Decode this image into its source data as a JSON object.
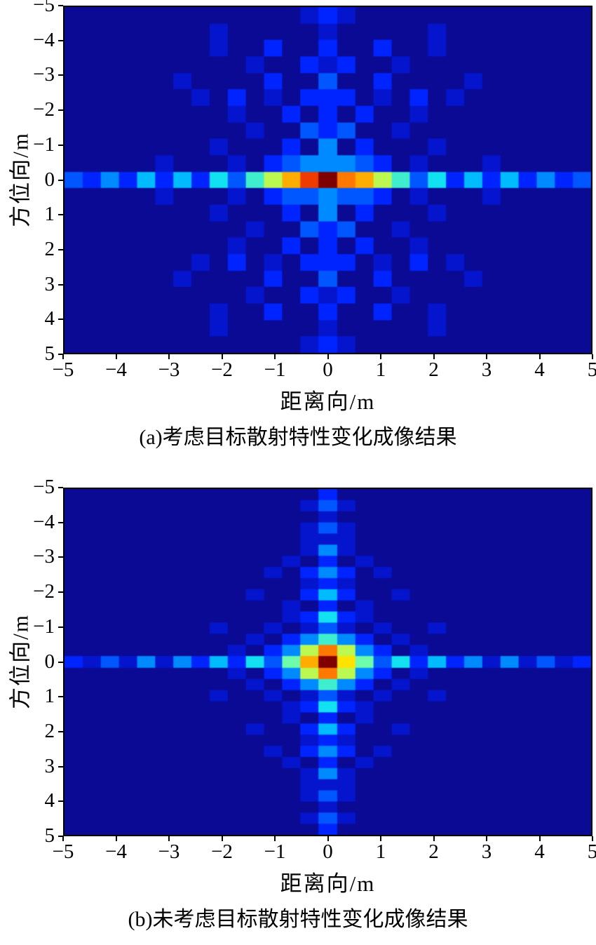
{
  "page": {
    "background": "#ffffff"
  },
  "chart_data": [
    {
      "type": "heatmap",
      "panel": "a",
      "caption": "(a)考虑目标散射特性变化成像结果",
      "xlabel": "距离向/m",
      "ylabel": "方位向/m",
      "xlim": [
        -5,
        5
      ],
      "ylim": [
        -5,
        5
      ],
      "xticks": [
        -5,
        -4,
        -3,
        -2,
        -1,
        0,
        1,
        2,
        3,
        4,
        5
      ],
      "yticks": [
        -5,
        -4,
        -3,
        -2,
        -1,
        0,
        1,
        2,
        3,
        4,
        5
      ],
      "xtick_labels": [
        "−5",
        "−4",
        "−3",
        "−2",
        "−1",
        "0",
        "1",
        "2",
        "3",
        "4",
        "5"
      ],
      "ytick_labels": [
        "−5",
        "−4",
        "−3",
        "−2",
        "−1",
        "0",
        "1",
        "2",
        "3",
        "4",
        "5"
      ],
      "colormap": "jet",
      "background_color": "#0a0a94",
      "peak": {
        "x": 0,
        "y": 0,
        "color": "#7f0000"
      },
      "legend": "none",
      "grid_lines": "off",
      "grid": {
        "cols": 29,
        "rows": 21,
        "encoding": "hex digit 0-F = relative backscatter intensity 0-1; rows listed from y=-5 (top) to y=+5 (bottom); cols from x=-5 (left) to x=+5 (right)",
        "rows_hex": [
          "00000000000001210000000000000",
          "00000000100000100000100000000",
          "00000000100200200200100000000",
          "00000000001002120010000000000",
          "00000010000200300200001000000",
          "00000001020102220102010000000",
          "00000000010020202001000000000",
          "00000000001003230010000000000",
          "00000000100020402000100000000",
          "00000100010234443201000100000",
          "324252526379BDFCB973625252423",
          "00000100010233433201000100000",
          "00000000100020402000100000000",
          "00000000001003230010000000000",
          "00000000010020202001000000000",
          "00000001020102220102010000000",
          "00000010000200300200001000000",
          "00000000001002120010000000000",
          "00000000100200200200100000000",
          "00000000100000100000100000000",
          "00000000000001210000000000000"
        ]
      }
    },
    {
      "type": "heatmap",
      "panel": "b",
      "caption": "(b)未考虑目标散射特性变化成像结果",
      "xlabel": "距离向/m",
      "ylabel": "方位向/m",
      "xlim": [
        -5,
        5
      ],
      "ylim": [
        -5,
        5
      ],
      "xticks": [
        -5,
        -4,
        -3,
        -2,
        -1,
        0,
        1,
        2,
        3,
        4,
        5
      ],
      "yticks": [
        -5,
        -4,
        -3,
        -2,
        -1,
        0,
        1,
        2,
        3,
        4,
        5
      ],
      "xtick_labels": [
        "−5",
        "−4",
        "−3",
        "−2",
        "−1",
        "0",
        "1",
        "2",
        "3",
        "4",
        "5"
      ],
      "ytick_labels": [
        "−5",
        "−4",
        "−3",
        "−2",
        "−1",
        "0",
        "1",
        "2",
        "3",
        "4",
        "5"
      ],
      "colormap": "jet",
      "background_color": "#0a0a94",
      "peak": {
        "x": 0,
        "y": 0,
        "color": "#7f0000"
      },
      "legend": "none",
      "grid_lines": "off",
      "grid": {
        "cols": 29,
        "rows": 31,
        "encoding": "hex digit 0-F = relative backscatter intensity 0-1; rows listed from y=-5 (top) to y=+5 (bottom); cols from x=-5 (left) to x=+5 (right)",
        "rows_hex": [
          "00000000000000200000000000000",
          "00000000000001310000000000000",
          "00000000000000100000000000000",
          "00000000000001310000000000000",
          "00000000000001110000000000000",
          "00000000000001410000000000000",
          "00000000000010201000000000000",
          "00000000000102420100000000000",
          "00000000000001210000000000000",
          "00000000001002520010000000000",
          "00000000000010201000000000000",
          "00000000000012621000000000000",
          "00000000100101310100100000000",
          "00000000001024742010000000000",
          "00000000010249C94201000000000",
          "2131414252638BFA8362524141312",
          "00000000010249C94201000000000",
          "00000000001024742010000000000",
          "00000000100101310100100000000",
          "00000000000012621000000000000",
          "00000000000010201000000000000",
          "00000000001002520010000000000",
          "00000000000001210000000000000",
          "00000000000102420100000000000",
          "00000000000010201000000000000",
          "00000000000001410000000000000",
          "00000000000001110000000000000",
          "00000000000001310000000000000",
          "00000000000000100000000000000",
          "00000000000001310000000000000",
          "00000000000000200000000000000"
        ]
      }
    }
  ]
}
